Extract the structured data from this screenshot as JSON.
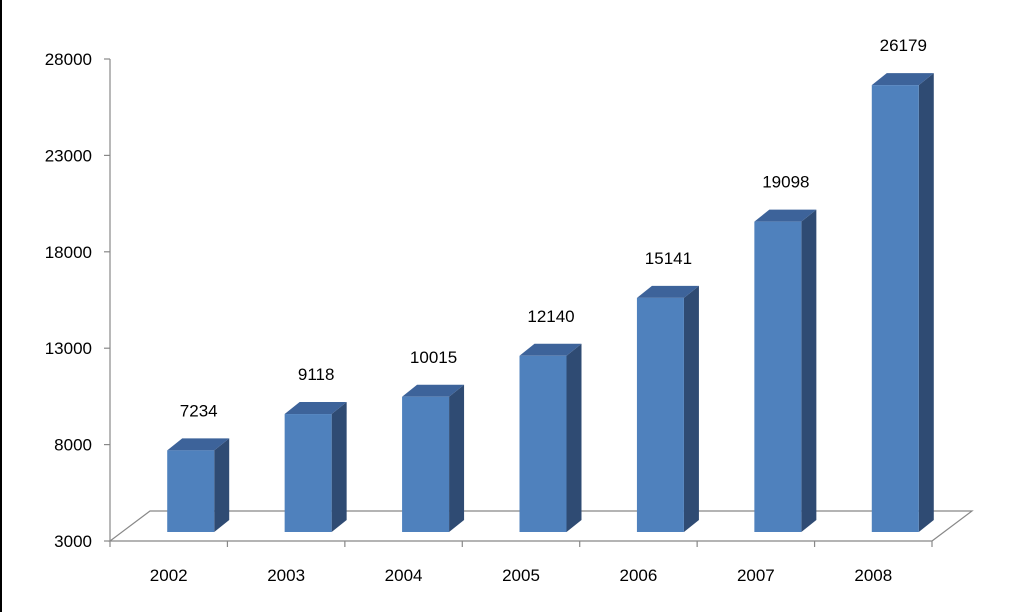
{
  "chart_data": {
    "type": "bar",
    "categories": [
      "2002",
      "2003",
      "2004",
      "2005",
      "2006",
      "2007",
      "2008"
    ],
    "values": [
      7234,
      9118,
      10015,
      12140,
      15141,
      19098,
      26179
    ],
    "data_labels": [
      "7234",
      "9118",
      "10015",
      "12140",
      "15141",
      "19098",
      "26179"
    ],
    "yticks": [
      3000,
      8000,
      13000,
      18000,
      23000,
      28000
    ],
    "ytick_labels": [
      "3000",
      "8000",
      "13000",
      "18000",
      "23000",
      "28000"
    ],
    "ylim": [
      3000,
      28000
    ],
    "title": "",
    "xlabel": "",
    "ylabel": "",
    "legend": "none",
    "grid": false,
    "colors": {
      "bar_front": "#4f81bd",
      "bar_side": "#2f4b73",
      "bar_top": "#3d639a",
      "axis": "#888888"
    }
  }
}
